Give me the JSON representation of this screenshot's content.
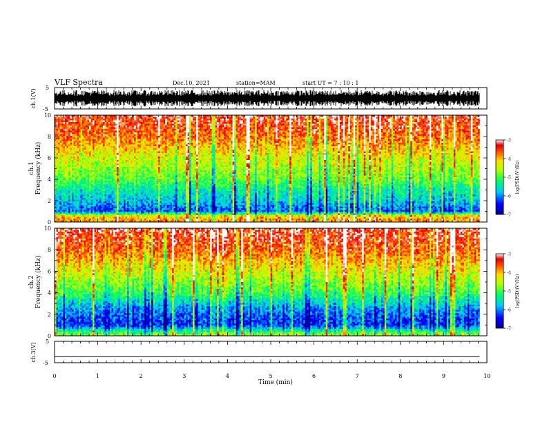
{
  "header": {
    "title": "VLF Spectra",
    "date": "Dec.10, 2021",
    "station": "station=MAM",
    "start": "start  UT  =   7  : 10 : 1"
  },
  "chart_data": [
    {
      "type": "line",
      "ylabel": "ch.1(V)",
      "ylim": [
        -5,
        5
      ],
      "y_ticklabels": [
        "5",
        "-5"
      ],
      "xlim": [
        0,
        10
      ],
      "series": [
        {
          "values": "dense waveform, amplitude ~ +/-3 V across 0-9.83 min"
        }
      ]
    },
    {
      "type": "heatmap",
      "ylabel": "ch.1 Frequency (kHz)",
      "xlim": [
        0,
        10
      ],
      "ylim": [
        0,
        10
      ],
      "y_ticklabels": [
        "0",
        "2",
        "4",
        "6",
        "8",
        "10"
      ],
      "data_end_min": 9.83,
      "colorbar": {
        "label": "log(PSD)(V²/Hz)",
        "range": [
          -7,
          -3
        ],
        "ticklabels": [
          "-3",
          "-4",
          "-5",
          "-6",
          "-7"
        ]
      },
      "description_profile_logpsd": [
        [
          0.0,
          -3.9
        ],
        [
          0.3,
          -3.9
        ],
        [
          0.6,
          -4.3
        ],
        [
          1.0,
          -6.2
        ],
        [
          2.0,
          -5.7
        ],
        [
          3.0,
          -5.4
        ],
        [
          4.0,
          -4.9
        ],
        [
          6.0,
          -4.4
        ],
        [
          8.0,
          -3.7
        ],
        [
          10.0,
          -3.3
        ]
      ]
    },
    {
      "type": "heatmap",
      "ylabel": "ch.2 Frequency (kHz)",
      "xlim": [
        0,
        10
      ],
      "ylim": [
        0,
        10
      ],
      "y_ticklabels": [
        "0",
        "2",
        "4",
        "6",
        "8",
        "10"
      ],
      "data_end_min": 9.83,
      "colorbar": {
        "label": "log(PSD)(V²/Hz)",
        "range": [
          -7,
          -3
        ],
        "ticklabels": [
          "-3",
          "-4",
          "-5",
          "-6",
          "-7"
        ]
      },
      "description_profile_logpsd": [
        [
          0.0,
          -4.6
        ],
        [
          0.3,
          -5.0
        ],
        [
          1.0,
          -6.3
        ],
        [
          2.0,
          -6.1
        ],
        [
          3.0,
          -5.6
        ],
        [
          4.0,
          -5.0
        ],
        [
          6.0,
          -4.3
        ],
        [
          8.0,
          -3.6
        ],
        [
          10.0,
          -3.2
        ]
      ]
    },
    {
      "type": "line",
      "ylabel": "ch.3(V)",
      "ylim": [
        -5,
        5
      ],
      "y_ticklabels": [
        "5",
        "-5"
      ],
      "xlim": [
        0,
        10
      ],
      "series": [
        {
          "values": [
            [
              0,
              -2.2
            ],
            [
              9.83,
              -2.2
            ]
          ]
        }
      ]
    }
  ],
  "xaxis": {
    "label": "Time (min)",
    "ticklabels": [
      "0",
      "1",
      "2",
      "3",
      "4",
      "5",
      "6",
      "7",
      "8",
      "9",
      "10"
    ]
  }
}
